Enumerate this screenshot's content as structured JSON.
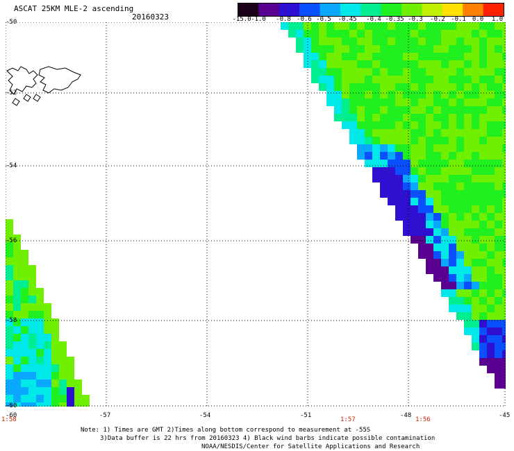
{
  "header": {
    "title": "ASCAT 25KM MLE-2 ascending",
    "date": "20160323"
  },
  "legend": {
    "labels": [
      "-15.0",
      "-1.0",
      "-0.8",
      "-0.6",
      "-0.5",
      "-0.45",
      "-0.4",
      "-0.35",
      "-0.3",
      "-0.2",
      "-0.1",
      "0.0",
      "1.0"
    ],
    "colors": [
      "#1a0018",
      "#5a0090",
      "#3010d0",
      "#0a50ff",
      "#0aa8ff",
      "#00e8e8",
      "#00ee90",
      "#20f020",
      "#70f000",
      "#c0f000",
      "#ffe000",
      "#ff8000",
      "#ff2000"
    ]
  },
  "axes": {
    "lat_labels": [
      "-50",
      "-52",
      "-54",
      "-56",
      "-58",
      "-60"
    ],
    "lon_labels": [
      "-60",
      "-57",
      "-54",
      "-51",
      "-48",
      "-45"
    ]
  },
  "time_labels": [
    "1:58",
    "1:57",
    "1:56"
  ],
  "notes": [
    "Note: 1) Times are GMT 2)Times along bottom correspond to measurement at -55S",
    "3)Data buffer is 22 hrs from 20160323 4) Black wind barbs indicate possible contamination",
    "NOAA/NESDIS/Center for Satellite Applications and Research"
  ]
}
